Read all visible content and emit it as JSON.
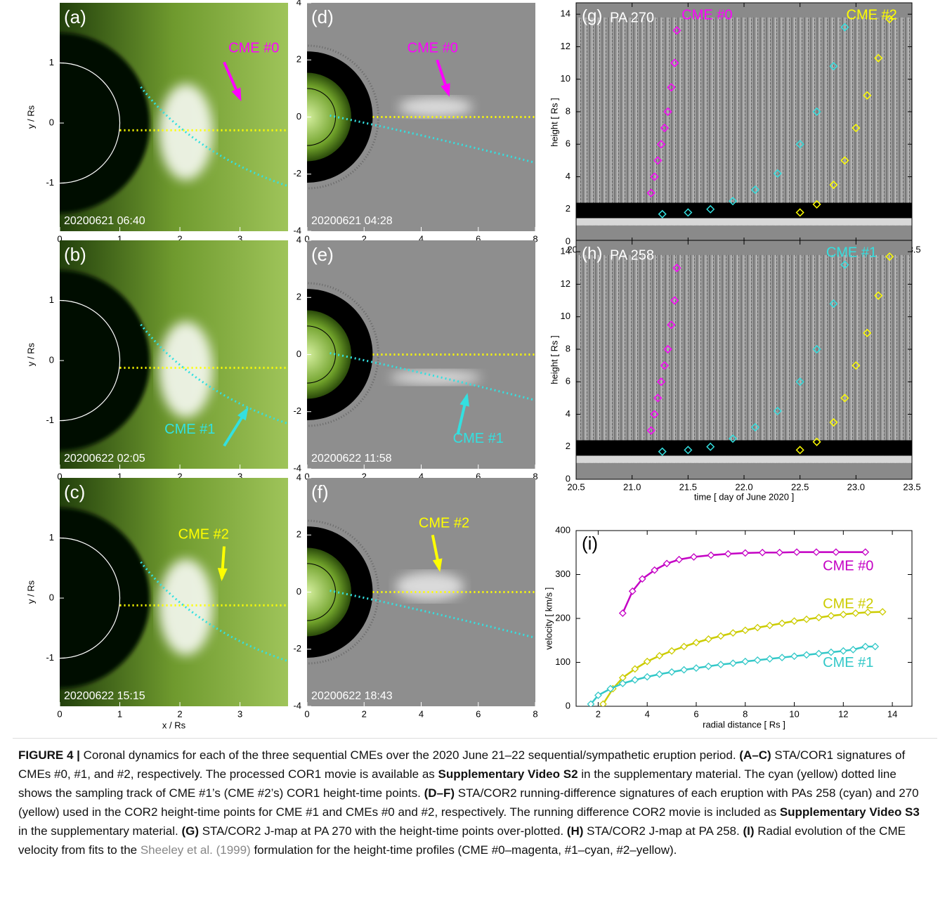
{
  "figure": {
    "cor1": {
      "xlim": [
        0,
        3.8
      ],
      "ylim": [
        -1.8,
        2.0
      ],
      "xticks": [
        0,
        1,
        2,
        3
      ],
      "yticks": [
        -1,
        0,
        1
      ],
      "xlabel": "x / Rs",
      "ylabel": "y / Rs",
      "panels": [
        {
          "label": "(a)",
          "time": "20200621 06:40",
          "annotation": "CME #0",
          "color": "#ff00ff"
        },
        {
          "label": "(b)",
          "time": "20200622 02:05",
          "annotation": "CME #1",
          "color": "#33e0e0"
        },
        {
          "label": "(c)",
          "time": "20200622 15:15",
          "annotation": "CME #2",
          "color": "#ffff00"
        }
      ]
    },
    "cor2": {
      "xlim": [
        0,
        8
      ],
      "ylim": [
        -4,
        4
      ],
      "xticks": [
        0,
        2,
        4,
        6,
        8
      ],
      "yticks": [
        -4,
        -2,
        0,
        2,
        4
      ],
      "panels": [
        {
          "label": "(d)",
          "time": "20200621 04:28",
          "annotation": "CME #0",
          "color": "#ff00ff"
        },
        {
          "label": "(e)",
          "time": "20200622 11:58",
          "annotation": "CME #1",
          "color": "#33e0e0"
        },
        {
          "label": "(f)",
          "time": "20200622 18:43",
          "annotation": "CME #2",
          "color": "#ffff00"
        }
      ]
    },
    "jmaps": {
      "xlim": [
        20.5,
        23.5
      ],
      "ylim": [
        0,
        14.7
      ],
      "xticks": [
        20.5,
        {
          "value": 21,
          "label": "21.0"
        },
        21.5,
        {
          "value": 22,
          "label": "22.0"
        },
        22.5,
        {
          "value": 23,
          "label": "23.0"
        },
        23.5
      ],
      "yticks": [
        0,
        2,
        4,
        6,
        8,
        10,
        12,
        14
      ],
      "xlabel": "time  [ day of June 2020 ]",
      "ylabel": "height  [ Rs ]",
      "panels": [
        {
          "label": "(g)",
          "pa": "PA 270",
          "annotations": [
            {
              "text": "CME #0",
              "color": "#ff00ff"
            },
            {
              "text": "CME #2",
              "color": "#ffff00"
            }
          ],
          "tracks": [
            {
              "color": "#ff00ff",
              "x": [
                21.17,
                21.2,
                21.23,
                21.26,
                21.29,
                21.32,
                21.35,
                21.38,
                21.4
              ],
              "values": [
                3,
                4,
                5,
                6,
                7,
                8,
                9.5,
                11,
                13
              ]
            },
            {
              "color": "#33e0e0",
              "x": [
                21.27,
                21.5,
                21.7,
                21.9,
                22.1,
                22.3,
                22.5,
                22.65,
                22.8,
                22.9
              ],
              "values": [
                1.7,
                1.8,
                2.0,
                2.5,
                3.2,
                4.2,
                6,
                8,
                10.8,
                13.2
              ]
            },
            {
              "color": "#ffff00",
              "x": [
                22.5,
                22.65,
                22.8,
                22.9,
                23.0,
                23.1,
                23.2,
                23.3
              ],
              "values": [
                1.8,
                2.3,
                3.5,
                5,
                7,
                9,
                11.3,
                13.7
              ]
            }
          ]
        },
        {
          "label": "(h)",
          "pa": "PA 258",
          "annotations": [
            {
              "text": "CME #1",
              "color": "#33e0e0"
            }
          ],
          "tracks": [
            {
              "color": "#ff00ff",
              "x": [
                21.17,
                21.2,
                21.23,
                21.26,
                21.29,
                21.32,
                21.35,
                21.38,
                21.4
              ],
              "values": [
                3,
                4,
                5,
                6,
                7,
                8,
                9.5,
                11,
                13
              ]
            },
            {
              "color": "#33e0e0",
              "x": [
                21.27,
                21.5,
                21.7,
                21.9,
                22.1,
                22.3,
                22.5,
                22.65,
                22.8,
                22.9
              ],
              "values": [
                1.7,
                1.8,
                2.0,
                2.5,
                3.2,
                4.2,
                6,
                8,
                10.8,
                13.2
              ]
            },
            {
              "color": "#ffff00",
              "x": [
                22.5,
                22.65,
                22.8,
                22.9,
                23.0,
                23.1,
                23.2,
                23.3
              ],
              "values": [
                1.8,
                2.3,
                3.5,
                5,
                7,
                9,
                11.3,
                13.7
              ]
            }
          ]
        }
      ]
    },
    "velocity": {
      "type": "line",
      "label": "(i)",
      "xlabel": "radial distance  [ Rs ]",
      "ylabel": "velocity  [ km/s ]",
      "xlim": [
        1.1,
        14.8
      ],
      "ylim": [
        0,
        400
      ],
      "xticks": [
        2,
        4,
        6,
        8,
        10,
        12,
        14
      ],
      "yticks": [
        0,
        100,
        200,
        300,
        400
      ],
      "series": [
        {
          "name": "CME #0",
          "color": "#c400c4",
          "x": [
            3.0,
            3.4,
            3.8,
            4.3,
            4.8,
            5.3,
            5.9,
            6.6,
            7.3,
            8.0,
            8.7,
            9.4,
            10.1,
            10.9,
            11.7,
            12.9
          ],
          "values": [
            212,
            262,
            290,
            310,
            325,
            334,
            340,
            344,
            347,
            349,
            350,
            350,
            351,
            351,
            351,
            351
          ]
        },
        {
          "name": "CME #2",
          "color": "#cccc00",
          "x": [
            2.2,
            2.6,
            3.0,
            3.5,
            4.0,
            4.5,
            5.0,
            5.5,
            6.0,
            6.5,
            7.0,
            7.5,
            8.0,
            8.5,
            9.0,
            9.5,
            10.0,
            10.5,
            11.0,
            11.5,
            12.0,
            12.5,
            13.0,
            13.6
          ],
          "values": [
            5,
            40,
            65,
            85,
            102,
            115,
            126,
            136,
            145,
            153,
            160,
            167,
            173,
            179,
            184,
            189,
            194,
            198,
            202,
            206,
            209,
            212,
            214,
            215
          ]
        },
        {
          "name": "CME #1",
          "color": "#33c8c8",
          "x": [
            1.7,
            2.0,
            2.5,
            3.0,
            3.5,
            4.0,
            4.5,
            5.0,
            5.5,
            6.0,
            6.5,
            7.0,
            7.5,
            8.0,
            8.5,
            9.0,
            9.5,
            10.0,
            10.5,
            11.0,
            11.5,
            12.0,
            12.4,
            12.9,
            13.3
          ],
          "values": [
            5,
            25,
            40,
            52,
            60,
            67,
            73,
            78,
            83,
            87,
            91,
            95,
            98,
            102,
            105,
            108,
            111,
            114,
            117,
            120,
            123,
            126,
            129,
            136,
            136
          ]
        }
      ]
    }
  },
  "caption": [
    {
      "text": "FIGURE 4 |",
      "kind": "bold"
    },
    {
      "text": " Coronal dynamics for each of the three sequential CMEs over the 2020 June 21–22 sequential/sympathetic eruption period. ",
      "kind": "plain"
    },
    {
      "text": "(A–C)",
      "kind": "bold"
    },
    {
      "text": " STA/COR1 signatures of CMEs #0, #1, and #2, respectively. The processed COR1 movie is available as ",
      "kind": "plain"
    },
    {
      "text": "Supplementary Video S2",
      "kind": "bold"
    },
    {
      "text": " in the supplementary material. The cyan (yellow) dotted line shows the sampling track of CME #1’s (CME #2’s) COR1 height-time points. ",
      "kind": "plain"
    },
    {
      "text": "(D–F)",
      "kind": "bold"
    },
    {
      "text": " STA/COR2 running-difference signatures of each eruption with PAs 258 (cyan) and 270 (yellow) used in the COR2 height-time points for CME #1 and CMEs #0 and #2, respectively. The running difference COR2 movie is included as ",
      "kind": "plain"
    },
    {
      "text": "Supplementary Video S3",
      "kind": "bold"
    },
    {
      "text": " in the supplementary material. ",
      "kind": "plain"
    },
    {
      "text": "(G)",
      "kind": "bold"
    },
    {
      "text": " STA/COR2 J-map at PA 270 with the height-time points over-plotted. ",
      "kind": "plain"
    },
    {
      "text": "(H)",
      "kind": "bold"
    },
    {
      "text": " STA/COR2 J-map at PA 258. ",
      "kind": "plain"
    },
    {
      "text": "(I)",
      "kind": "bold"
    },
    {
      "text": " Radial evolution of the CME velocity from fits to the ",
      "kind": "plain"
    },
    {
      "text": "Sheeley et al. (1999)",
      "kind": "link"
    },
    {
      "text": " formulation for the height-time profiles (CME #0–magenta, #1–cyan, #2–yellow).",
      "kind": "plain"
    }
  ]
}
